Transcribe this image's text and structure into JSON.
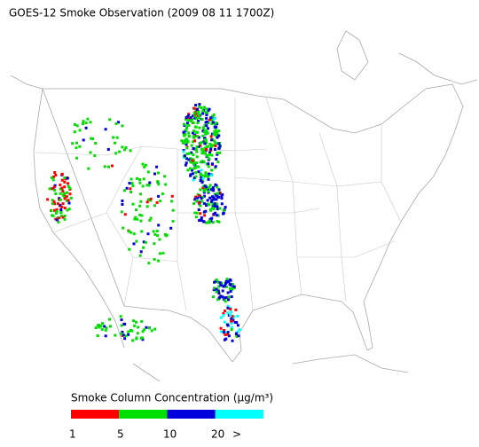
{
  "header": {
    "title": "GOES-12 Smoke Observation (2009 08 11  1700Z)"
  },
  "legend": {
    "title": "Smoke Column Concentration (μg/m³)",
    "colors": [
      "#ff0000",
      "#00e000",
      "#0000dd",
      "#00ffff"
    ],
    "labels": [
      "1",
      "5",
      "10",
      "20",
      ">"
    ]
  }
}
